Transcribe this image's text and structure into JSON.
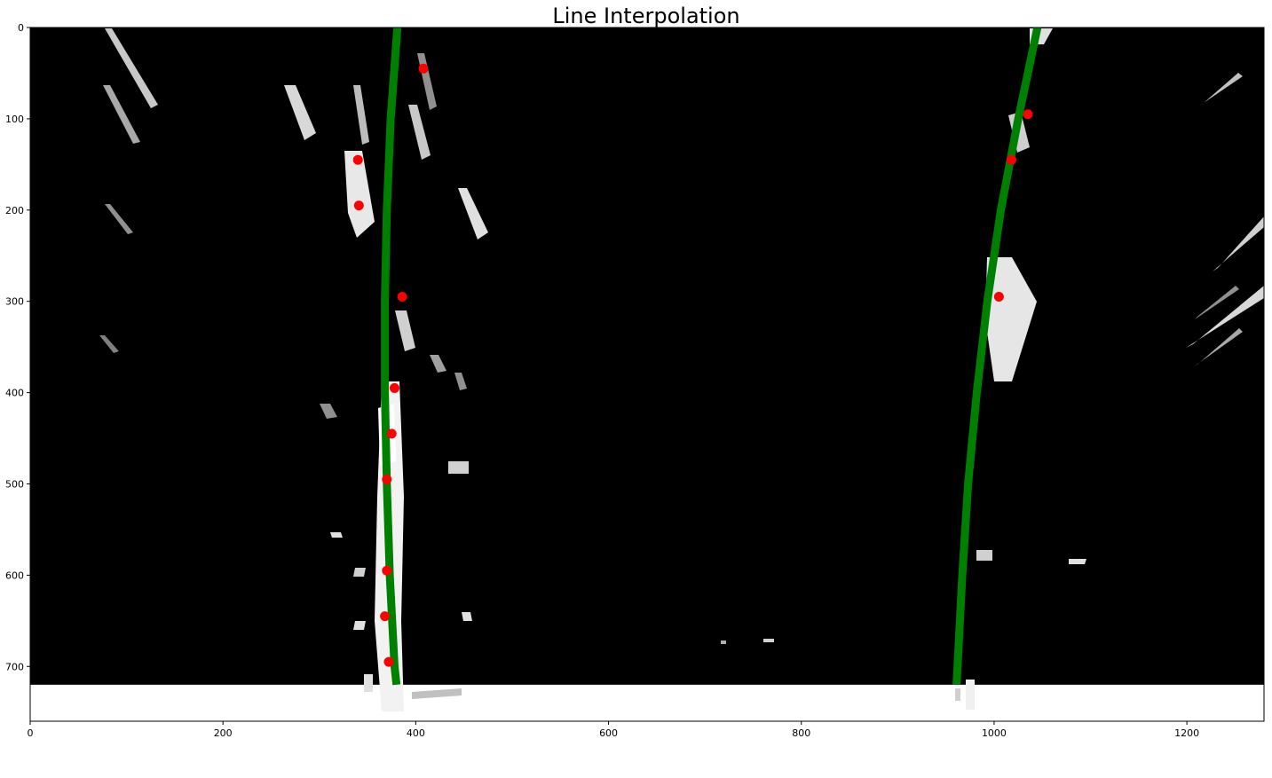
{
  "chart_data": {
    "type": "scatter",
    "title": "Line Interpolation",
    "xlabel": "",
    "ylabel": "",
    "xlim": [
      0,
      1280
    ],
    "ylim": [
      760,
      0
    ],
    "image_extent": {
      "x": [
        0,
        1280
      ],
      "y": [
        0,
        720
      ]
    },
    "grid": false,
    "x_ticks": [
      0,
      200,
      400,
      600,
      800,
      1000,
      1200
    ],
    "y_ticks": [
      0,
      100,
      200,
      300,
      400,
      500,
      600,
      700
    ],
    "background_image": "binary lane-line mask (white pixels on black)",
    "series": [
      {
        "kind": "points",
        "color": "#ff0000",
        "points": [
          [
            408,
            45
          ],
          [
            340,
            145
          ],
          [
            341,
            195
          ],
          [
            386,
            295
          ],
          [
            378,
            395
          ],
          [
            375,
            445
          ],
          [
            370,
            495
          ],
          [
            370,
            595
          ],
          [
            368,
            645
          ],
          [
            372,
            695
          ],
          [
            1035,
            95
          ],
          [
            1018,
            145
          ],
          [
            1005,
            295
          ]
        ]
      },
      {
        "kind": "line",
        "color": "#008000",
        "points": [
          [
            381,
            0
          ],
          [
            374,
            100
          ],
          [
            370,
            200
          ],
          [
            368,
            300
          ],
          [
            368,
            400
          ],
          [
            370,
            500
          ],
          [
            373,
            600
          ],
          [
            378,
            700
          ],
          [
            380,
            720
          ]
        ]
      },
      {
        "kind": "line",
        "color": "#008000",
        "points": [
          [
            1045,
            0
          ],
          [
            1025,
            100
          ],
          [
            1007,
            200
          ],
          [
            993,
            300
          ],
          [
            982,
            400
          ],
          [
            973,
            500
          ],
          [
            967,
            600
          ],
          [
            962,
            700
          ],
          [
            961,
            720
          ]
        ]
      }
    ]
  }
}
